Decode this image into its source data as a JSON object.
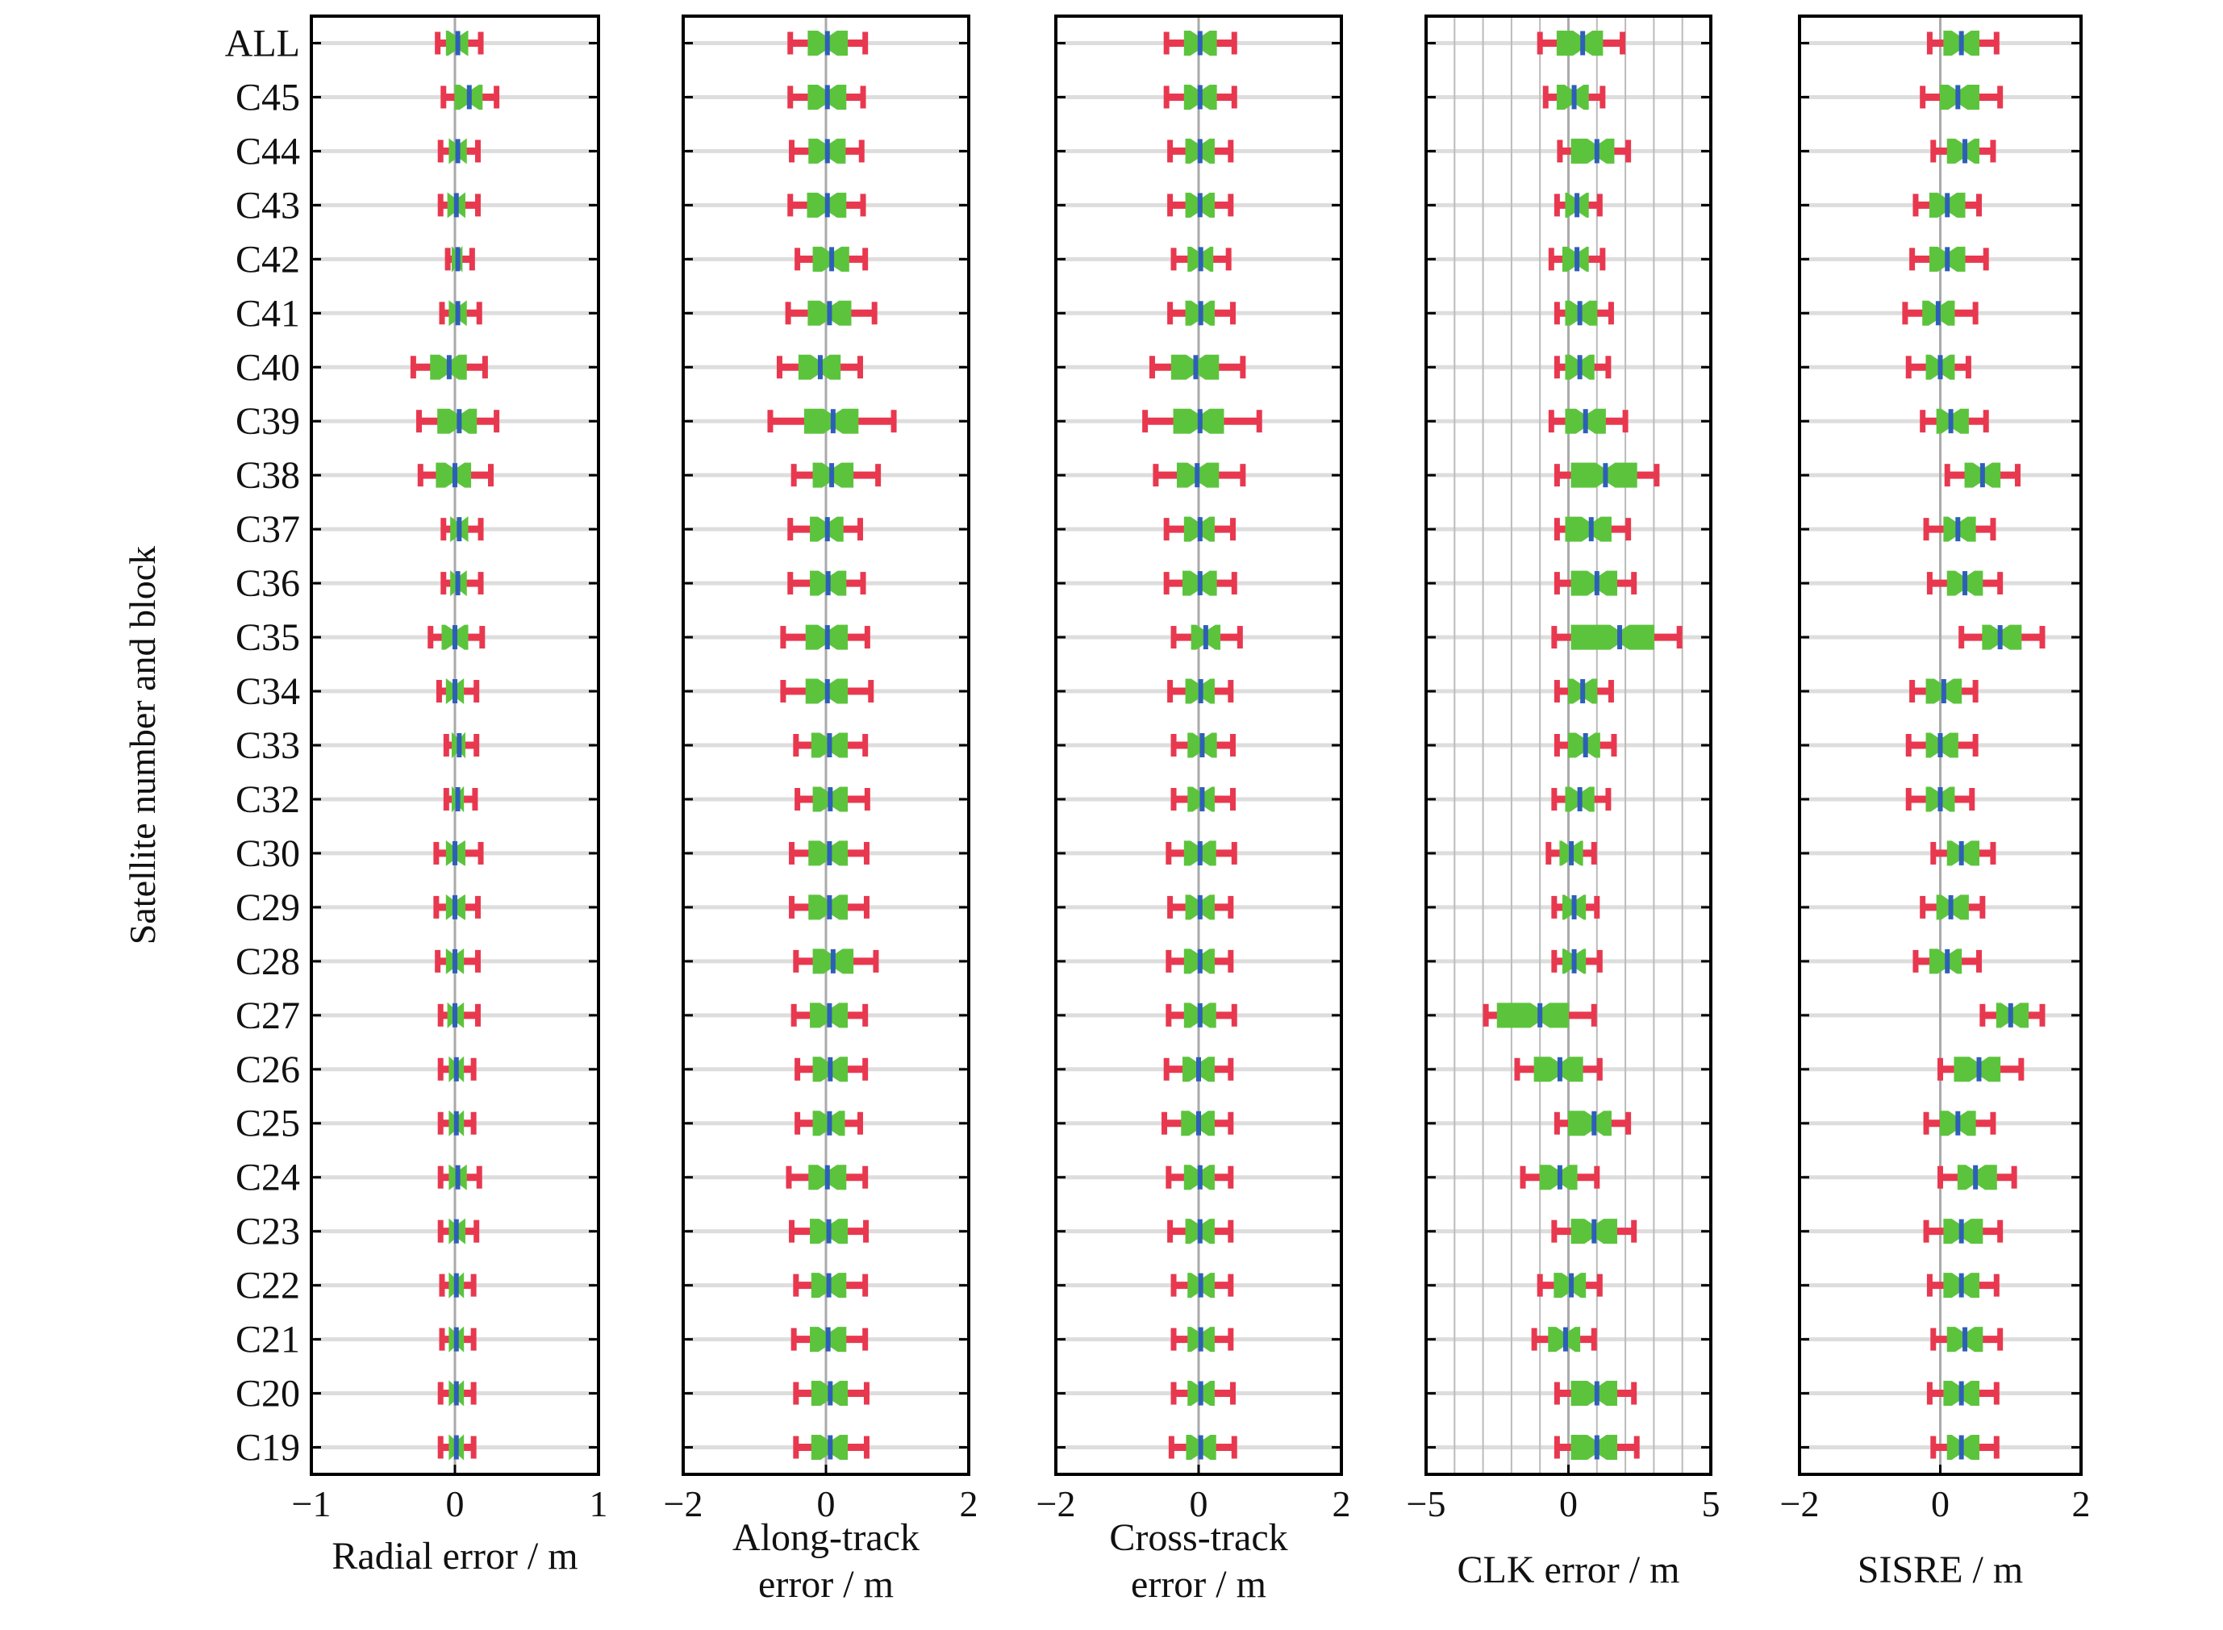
{
  "chart_data": {
    "type": "box",
    "ylabel": "Satellite number and block",
    "categories": [
      "ALL",
      "C45",
      "C44",
      "C43",
      "C42",
      "C41",
      "C40",
      "C39",
      "C38",
      "C37",
      "C36",
      "C35",
      "C34",
      "C33",
      "C32",
      "C30",
      "C29",
      "C28",
      "C27",
      "C26",
      "C25",
      "C24",
      "C23",
      "C22",
      "C21",
      "C20",
      "C19"
    ],
    "colors": {
      "whisker": "#e8384f",
      "box": "#5cc43c",
      "median": "#2e5fb8",
      "zero_line": "#aaaaaa",
      "row_line": "#dddddd",
      "frame": "#000000"
    },
    "panels": [
      {
        "xlabel": [
          "Radial error / m"
        ],
        "xlim": [
          -1,
          1
        ],
        "xticks": [
          -1,
          0,
          1
        ],
        "xtick_labels": [
          "−1",
          "0",
          "1"
        ],
        "grid": false,
        "series": [
          [
            -0.12,
            -0.06,
            0.02,
            0.09,
            0.18
          ],
          [
            -0.08,
            0.0,
            0.1,
            0.19,
            0.29
          ],
          [
            -0.1,
            -0.04,
            0.02,
            0.08,
            0.16
          ],
          [
            -0.1,
            -0.05,
            0.01,
            0.07,
            0.16
          ],
          [
            -0.05,
            -0.02,
            0.02,
            0.05,
            0.12
          ],
          [
            -0.09,
            -0.04,
            0.02,
            0.08,
            0.17
          ],
          [
            -0.29,
            -0.17,
            -0.04,
            0.08,
            0.21
          ],
          [
            -0.25,
            -0.12,
            0.03,
            0.15,
            0.29
          ],
          [
            -0.24,
            -0.13,
            0.0,
            0.11,
            0.25
          ],
          [
            -0.08,
            -0.03,
            0.03,
            0.09,
            0.18
          ],
          [
            -0.08,
            -0.03,
            0.02,
            0.08,
            0.18
          ],
          [
            -0.17,
            -0.09,
            0.0,
            0.09,
            0.19
          ],
          [
            -0.11,
            -0.06,
            0.0,
            0.06,
            0.15
          ],
          [
            -0.06,
            -0.02,
            0.03,
            0.07,
            0.15
          ],
          [
            -0.06,
            -0.02,
            0.02,
            0.06,
            0.14
          ],
          [
            -0.13,
            -0.06,
            0.0,
            0.07,
            0.18
          ],
          [
            -0.13,
            -0.06,
            0.0,
            0.07,
            0.16
          ],
          [
            -0.12,
            -0.06,
            0.0,
            0.06,
            0.16
          ],
          [
            -0.1,
            -0.05,
            0.0,
            0.06,
            0.16
          ],
          [
            -0.1,
            -0.04,
            0.01,
            0.06,
            0.13
          ],
          [
            -0.1,
            -0.04,
            0.01,
            0.06,
            0.13
          ],
          [
            -0.1,
            -0.04,
            0.02,
            0.08,
            0.17
          ],
          [
            -0.1,
            -0.04,
            0.01,
            0.07,
            0.15
          ],
          [
            -0.09,
            -0.04,
            0.01,
            0.06,
            0.13
          ],
          [
            -0.09,
            -0.04,
            0.01,
            0.06,
            0.13
          ],
          [
            -0.1,
            -0.04,
            0.01,
            0.06,
            0.13
          ],
          [
            -0.1,
            -0.04,
            0.01,
            0.06,
            0.13
          ]
        ]
      },
      {
        "xlabel": [
          "Along-track",
          "error / m"
        ],
        "xlim": [
          -2,
          2
        ],
        "xticks": [
          -2,
          0,
          2
        ],
        "xtick_labels": [
          "−2",
          "0",
          "2"
        ],
        "grid": false,
        "series": [
          [
            -0.5,
            -0.25,
            0.02,
            0.3,
            0.55
          ],
          [
            -0.5,
            -0.25,
            0.02,
            0.28,
            0.52
          ],
          [
            -0.48,
            -0.24,
            0.02,
            0.27,
            0.5
          ],
          [
            -0.5,
            -0.26,
            0.02,
            0.28,
            0.52
          ],
          [
            -0.4,
            -0.18,
            0.08,
            0.32,
            0.55
          ],
          [
            -0.53,
            -0.25,
            0.05,
            0.35,
            0.68
          ],
          [
            -0.65,
            -0.38,
            -0.08,
            0.2,
            0.48
          ],
          [
            -0.78,
            -0.3,
            0.1,
            0.45,
            0.95
          ],
          [
            -0.45,
            -0.18,
            0.08,
            0.38,
            0.73
          ],
          [
            -0.5,
            -0.22,
            0.02,
            0.24,
            0.48
          ],
          [
            -0.5,
            -0.22,
            0.03,
            0.28,
            0.52
          ],
          [
            -0.6,
            -0.28,
            0.02,
            0.3,
            0.58
          ],
          [
            -0.6,
            -0.28,
            0.02,
            0.3,
            0.63
          ],
          [
            -0.42,
            -0.2,
            0.05,
            0.3,
            0.55
          ],
          [
            -0.4,
            -0.18,
            0.06,
            0.3,
            0.58
          ],
          [
            -0.48,
            -0.24,
            0.05,
            0.3,
            0.57
          ],
          [
            -0.48,
            -0.24,
            0.05,
            0.3,
            0.57
          ],
          [
            -0.42,
            -0.18,
            0.1,
            0.38,
            0.7
          ],
          [
            -0.45,
            -0.22,
            0.05,
            0.3,
            0.55
          ],
          [
            -0.4,
            -0.18,
            0.06,
            0.3,
            0.55
          ],
          [
            -0.4,
            -0.18,
            0.05,
            0.26,
            0.48
          ],
          [
            -0.52,
            -0.24,
            0.02,
            0.28,
            0.55
          ],
          [
            -0.48,
            -0.22,
            0.04,
            0.3,
            0.56
          ],
          [
            -0.42,
            -0.2,
            0.04,
            0.28,
            0.55
          ],
          [
            -0.45,
            -0.22,
            0.03,
            0.28,
            0.55
          ],
          [
            -0.42,
            -0.2,
            0.06,
            0.3,
            0.57
          ],
          [
            -0.42,
            -0.2,
            0.06,
            0.3,
            0.57
          ]
        ]
      },
      {
        "xlabel": [
          "Cross-track",
          "error / m"
        ],
        "xlim": [
          -2,
          2
        ],
        "xticks": [
          -2,
          0,
          2
        ],
        "xtick_labels": [
          "−2",
          "0",
          "2"
        ],
        "grid": false,
        "series": [
          [
            -0.45,
            -0.2,
            0.02,
            0.25,
            0.5
          ],
          [
            -0.45,
            -0.2,
            0.02,
            0.25,
            0.5
          ],
          [
            -0.4,
            -0.18,
            0.02,
            0.22,
            0.45
          ],
          [
            -0.4,
            -0.18,
            0.02,
            0.22,
            0.45
          ],
          [
            -0.35,
            -0.15,
            0.03,
            0.2,
            0.42
          ],
          [
            -0.4,
            -0.18,
            0.03,
            0.22,
            0.48
          ],
          [
            -0.65,
            -0.38,
            -0.04,
            0.28,
            0.62
          ],
          [
            -0.75,
            -0.35,
            0.02,
            0.35,
            0.85
          ],
          [
            -0.6,
            -0.3,
            -0.02,
            0.28,
            0.62
          ],
          [
            -0.45,
            -0.2,
            0.02,
            0.22,
            0.48
          ],
          [
            -0.45,
            -0.22,
            0.02,
            0.25,
            0.5
          ],
          [
            -0.35,
            -0.1,
            0.1,
            0.3,
            0.58
          ],
          [
            -0.4,
            -0.18,
            0.03,
            0.22,
            0.45
          ],
          [
            -0.35,
            -0.15,
            0.05,
            0.25,
            0.48
          ],
          [
            -0.35,
            -0.15,
            0.05,
            0.22,
            0.48
          ],
          [
            -0.42,
            -0.2,
            0.02,
            0.24,
            0.5
          ],
          [
            -0.4,
            -0.18,
            0.02,
            0.22,
            0.45
          ],
          [
            -0.42,
            -0.2,
            0.02,
            0.22,
            0.45
          ],
          [
            -0.42,
            -0.2,
            0.02,
            0.24,
            0.5
          ],
          [
            -0.45,
            -0.22,
            0.0,
            0.22,
            0.45
          ],
          [
            -0.48,
            -0.24,
            0.0,
            0.22,
            0.45
          ],
          [
            -0.42,
            -0.2,
            0.02,
            0.22,
            0.45
          ],
          [
            -0.4,
            -0.18,
            0.02,
            0.22,
            0.45
          ],
          [
            -0.35,
            -0.15,
            0.03,
            0.22,
            0.45
          ],
          [
            -0.35,
            -0.15,
            0.03,
            0.22,
            0.45
          ],
          [
            -0.35,
            -0.15,
            0.03,
            0.22,
            0.48
          ],
          [
            -0.38,
            -0.17,
            0.03,
            0.24,
            0.5
          ]
        ]
      },
      {
        "xlabel": [
          "CLK error / m"
        ],
        "xlim": [
          -5,
          5
        ],
        "xticks": [
          -5,
          0,
          5
        ],
        "xtick_labels": [
          "−5",
          "0",
          "5"
        ],
        "grid": true,
        "grid_lines": [
          -4,
          -3,
          -2,
          -1,
          1,
          2,
          3,
          4
        ],
        "series": [
          [
            -1.0,
            -0.4,
            0.5,
            1.2,
            1.9
          ],
          [
            -0.8,
            -0.4,
            0.2,
            0.7,
            1.2
          ],
          [
            -0.3,
            0.1,
            1.0,
            1.6,
            2.1
          ],
          [
            -0.4,
            -0.1,
            0.3,
            0.7,
            1.1
          ],
          [
            -0.6,
            -0.2,
            0.3,
            0.7,
            1.2
          ],
          [
            -0.4,
            -0.1,
            0.4,
            1.0,
            1.5
          ],
          [
            -0.4,
            -0.1,
            0.4,
            0.9,
            1.4
          ],
          [
            -0.6,
            -0.1,
            0.6,
            1.3,
            2.0
          ],
          [
            -0.4,
            0.1,
            1.3,
            2.4,
            3.1
          ],
          [
            -0.4,
            -0.1,
            0.8,
            1.5,
            2.1
          ],
          [
            -0.4,
            0.1,
            1.0,
            1.7,
            2.3
          ],
          [
            -0.5,
            0.1,
            1.8,
            3.0,
            3.9
          ],
          [
            -0.4,
            0.0,
            0.5,
            1.0,
            1.5
          ],
          [
            -0.4,
            0.0,
            0.6,
            1.1,
            1.6
          ],
          [
            -0.5,
            -0.1,
            0.4,
            0.9,
            1.4
          ],
          [
            -0.7,
            -0.3,
            0.1,
            0.5,
            0.9
          ],
          [
            -0.5,
            -0.2,
            0.2,
            0.6,
            1.0
          ],
          [
            -0.5,
            -0.2,
            0.2,
            0.6,
            1.1
          ],
          [
            -2.9,
            -2.5,
            -1.0,
            0.0,
            0.9
          ],
          [
            -1.8,
            -1.2,
            -0.3,
            0.5,
            1.1
          ],
          [
            -0.4,
            0.0,
            0.9,
            1.5,
            2.1
          ],
          [
            -1.6,
            -1.0,
            -0.3,
            0.3,
            1.0
          ],
          [
            -0.5,
            0.1,
            0.9,
            1.7,
            2.3
          ],
          [
            -1.0,
            -0.5,
            0.1,
            0.6,
            1.1
          ],
          [
            -1.2,
            -0.7,
            -0.1,
            0.4,
            0.9
          ],
          [
            -0.4,
            0.1,
            1.0,
            1.7,
            2.3
          ],
          [
            -0.4,
            0.1,
            1.0,
            1.7,
            2.4
          ]
        ]
      },
      {
        "xlabel": [
          "SISRE / m"
        ],
        "xlim": [
          -2,
          2
        ],
        "xticks": [
          -2,
          0,
          2
        ],
        "xtick_labels": [
          "−2",
          "0",
          "2"
        ],
        "grid": false,
        "series": [
          [
            -0.15,
            0.05,
            0.3,
            0.55,
            0.8
          ],
          [
            -0.25,
            0.0,
            0.25,
            0.55,
            0.85
          ],
          [
            -0.1,
            0.1,
            0.35,
            0.55,
            0.75
          ],
          [
            -0.35,
            -0.15,
            0.1,
            0.35,
            0.55
          ],
          [
            -0.4,
            -0.15,
            0.1,
            0.35,
            0.65
          ],
          [
            -0.5,
            -0.25,
            -0.03,
            0.2,
            0.5
          ],
          [
            -0.45,
            -0.2,
            0.0,
            0.2,
            0.4
          ],
          [
            -0.25,
            -0.05,
            0.15,
            0.4,
            0.65
          ],
          [
            0.1,
            0.35,
            0.6,
            0.85,
            1.1
          ],
          [
            -0.2,
            0.05,
            0.25,
            0.5,
            0.75
          ],
          [
            -0.15,
            0.1,
            0.35,
            0.6,
            0.85
          ],
          [
            0.3,
            0.6,
            0.85,
            1.15,
            1.45
          ],
          [
            -0.4,
            -0.2,
            0.05,
            0.3,
            0.5
          ],
          [
            -0.45,
            -0.2,
            0.0,
            0.25,
            0.5
          ],
          [
            -0.45,
            -0.2,
            0.0,
            0.2,
            0.45
          ],
          [
            -0.1,
            0.1,
            0.3,
            0.55,
            0.75
          ],
          [
            -0.25,
            -0.05,
            0.15,
            0.4,
            0.6
          ],
          [
            -0.35,
            -0.15,
            0.1,
            0.3,
            0.55
          ],
          [
            0.6,
            0.8,
            1.0,
            1.25,
            1.45
          ],
          [
            0.0,
            0.2,
            0.55,
            0.85,
            1.15
          ],
          [
            -0.2,
            0.0,
            0.25,
            0.5,
            0.75
          ],
          [
            0.0,
            0.25,
            0.5,
            0.8,
            1.05
          ],
          [
            -0.2,
            0.05,
            0.3,
            0.6,
            0.85
          ],
          [
            -0.15,
            0.05,
            0.3,
            0.55,
            0.8
          ],
          [
            -0.1,
            0.1,
            0.35,
            0.6,
            0.85
          ],
          [
            -0.15,
            0.05,
            0.3,
            0.55,
            0.8
          ],
          [
            -0.1,
            0.1,
            0.3,
            0.55,
            0.8
          ]
        ]
      }
    ]
  }
}
